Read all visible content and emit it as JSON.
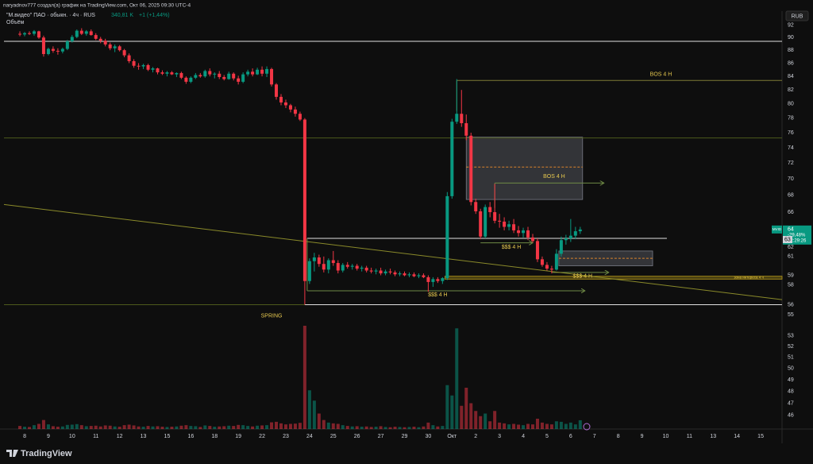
{
  "header": {
    "author_line": "naryadnov777 создал(а) график на TradingView.com, Окт 06, 2025 09:30 UTC-4",
    "symbol": "\"М.видео\" ПАО · обыкн. · 4ч · RUS",
    "volume_readout": "340,81 K",
    "change": "+1 (+1,44%)",
    "indicator": "Объём",
    "currency": "RUB",
    "brand": "TradingView"
  },
  "chart_data": {
    "type": "candlestick",
    "log_scale": true,
    "grid": false,
    "up_color": "#089981",
    "down_color": "#f23645",
    "xlim": [
      -0.87,
      31.9
    ],
    "ylim": [
      44.9,
      93.0
    ],
    "xticks": [
      {
        "value": 0,
        "label": "8"
      },
      {
        "value": 1,
        "label": "9"
      },
      {
        "value": 2,
        "label": "10"
      },
      {
        "value": 3,
        "label": "11"
      },
      {
        "value": 4,
        "label": "12"
      },
      {
        "value": 5,
        "label": "13"
      },
      {
        "value": 6,
        "label": "15"
      },
      {
        "value": 7,
        "label": "16"
      },
      {
        "value": 8,
        "label": "18"
      },
      {
        "value": 9,
        "label": "19"
      },
      {
        "value": 10,
        "label": "22"
      },
      {
        "value": 11,
        "label": "23"
      },
      {
        "value": 12,
        "label": "24"
      },
      {
        "value": 13,
        "label": "25"
      },
      {
        "value": 14,
        "label": "26"
      },
      {
        "value": 15,
        "label": "27"
      },
      {
        "value": 16,
        "label": "29"
      },
      {
        "value": 17,
        "label": "30"
      },
      {
        "value": 18,
        "label": "Окт"
      },
      {
        "value": 19,
        "label": "2"
      },
      {
        "value": 20,
        "label": "3"
      },
      {
        "value": 21,
        "label": "4"
      },
      {
        "value": 22,
        "label": "5"
      },
      {
        "value": 23,
        "label": "6"
      },
      {
        "value": 24,
        "label": "7"
      },
      {
        "value": 25,
        "label": "8"
      },
      {
        "value": 26,
        "label": "9"
      },
      {
        "value": 27,
        "label": "10"
      },
      {
        "value": 28,
        "label": "11"
      },
      {
        "value": 29,
        "label": "13"
      },
      {
        "value": 30,
        "label": "14"
      },
      {
        "value": 31,
        "label": "15"
      }
    ],
    "yticks": [
      92,
      90,
      88,
      86,
      84,
      82,
      80,
      78,
      76,
      74,
      72,
      70,
      68,
      66,
      62,
      61,
      59,
      58,
      56,
      55,
      53,
      52,
      51,
      50,
      49,
      48,
      47,
      46
    ],
    "candles": [
      [
        -0.2,
        90.6,
        91,
        90.2,
        90.5,
        120
      ],
      [
        0,
        90.5,
        90.9,
        90.2,
        90.7,
        90
      ],
      [
        0.2,
        90.7,
        91,
        90.4,
        90.6,
        80
      ],
      [
        0.4,
        90.6,
        91.2,
        90.3,
        91,
        150
      ],
      [
        0.6,
        91,
        91.1,
        89.8,
        90,
        200
      ],
      [
        0.8,
        90,
        90.3,
        87,
        87.4,
        350
      ],
      [
        1,
        87.4,
        88.4,
        87.2,
        88.2,
        180
      ],
      [
        1.2,
        88.2,
        88.6,
        87.6,
        87.9,
        110
      ],
      [
        1.4,
        87.9,
        88.3,
        87.3,
        87.8,
        90
      ],
      [
        1.6,
        87.8,
        88.4,
        87.5,
        88.2,
        100
      ],
      [
        1.8,
        88.2,
        89.6,
        88,
        89.4,
        160
      ],
      [
        2,
        89.4,
        90.4,
        89.2,
        90.1,
        170
      ],
      [
        2.2,
        90.1,
        91.3,
        89.9,
        91.1,
        190
      ],
      [
        2.4,
        91.1,
        91.5,
        90.4,
        90.6,
        150
      ],
      [
        2.6,
        90.6,
        91.2,
        90.3,
        91,
        110
      ],
      [
        2.8,
        91,
        91.3,
        90.3,
        90.4,
        120
      ],
      [
        3,
        90.4,
        90.7,
        89.6,
        89.8,
        130
      ],
      [
        3.2,
        89.8,
        90.1,
        89.1,
        89.5,
        100
      ],
      [
        3.4,
        89.5,
        89.8,
        88.6,
        88.9,
        140
      ],
      [
        3.6,
        88.9,
        89.2,
        88,
        88.3,
        130
      ],
      [
        3.8,
        88.3,
        88.9,
        87.7,
        88.6,
        100
      ],
      [
        4,
        88.6,
        88.8,
        87.8,
        88,
        90
      ],
      [
        4.2,
        88,
        88.2,
        86.9,
        87.2,
        150
      ],
      [
        4.4,
        87.2,
        87.5,
        86,
        86.3,
        170
      ],
      [
        4.6,
        86.3,
        86.6,
        85.3,
        85.6,
        140
      ],
      [
        4.8,
        85.6,
        86,
        85,
        85.5,
        100
      ],
      [
        5,
        85.5,
        85.9,
        85.1,
        85.7,
        90
      ],
      [
        5.2,
        85.7,
        85.9,
        84.8,
        85,
        120
      ],
      [
        5.4,
        85,
        85.4,
        84.6,
        85.2,
        100
      ],
      [
        5.6,
        85.2,
        85.3,
        84.3,
        84.6,
        110
      ],
      [
        5.8,
        84.6,
        84.9,
        84.2,
        84.4,
        90
      ],
      [
        6,
        84.4,
        84.8,
        84,
        84.6,
        80
      ],
      [
        6.2,
        84.6,
        84.8,
        84.2,
        84.3,
        90
      ],
      [
        6.4,
        84.3,
        84.6,
        83.9,
        84.5,
        100
      ],
      [
        6.6,
        84.5,
        84.7,
        83.6,
        83.8,
        130
      ],
      [
        6.8,
        83.8,
        84,
        82.9,
        83.2,
        150
      ],
      [
        7,
        83.2,
        84,
        83,
        83.8,
        120
      ],
      [
        7.2,
        83.8,
        84.5,
        83.6,
        84.2,
        110
      ],
      [
        7.4,
        84.2,
        84.5,
        83.8,
        84,
        80
      ],
      [
        7.6,
        84,
        85,
        83.8,
        84.8,
        140
      ],
      [
        7.8,
        84.8,
        85.2,
        84,
        84.3,
        120
      ],
      [
        8,
        84.3,
        84.6,
        83.7,
        84.4,
        90
      ],
      [
        8.2,
        84.4,
        84.8,
        83.6,
        83.9,
        100
      ],
      [
        8.4,
        83.9,
        84.2,
        83.4,
        83.6,
        110
      ],
      [
        8.6,
        83.6,
        84.7,
        83.5,
        84.4,
        130
      ],
      [
        8.8,
        84.4,
        84.6,
        83.4,
        83.7,
        120
      ],
      [
        9,
        83.7,
        84.1,
        82.8,
        83.2,
        160
      ],
      [
        9.2,
        83.2,
        84.6,
        83,
        84.3,
        150
      ],
      [
        9.4,
        84.3,
        85,
        84,
        84.7,
        120
      ],
      [
        9.6,
        84.7,
        85.2,
        84,
        84.3,
        100
      ],
      [
        9.8,
        84.3,
        85.3,
        84.2,
        85,
        130
      ],
      [
        10,
        85,
        85.5,
        84,
        84.4,
        140
      ],
      [
        10.2,
        84.4,
        85.5,
        83.9,
        85.1,
        150
      ],
      [
        10.4,
        85.1,
        85.3,
        82.5,
        82.8,
        260
      ],
      [
        10.6,
        82.8,
        83,
        80.6,
        81,
        280
      ],
      [
        10.8,
        81,
        81.4,
        79.8,
        80.2,
        220
      ],
      [
        11,
        80.2,
        80.6,
        79.4,
        79.8,
        180
      ],
      [
        11.2,
        79.8,
        80,
        78.8,
        79.2,
        200
      ],
      [
        11.4,
        79.2,
        79.6,
        78.2,
        78.6,
        210
      ],
      [
        11.6,
        78.6,
        78.9,
        77.6,
        77.8,
        240
      ],
      [
        11.8,
        77.8,
        78,
        56,
        58.4,
        4000
      ],
      [
        12,
        58.4,
        60.8,
        58.1,
        60.5,
        1500
      ],
      [
        12.2,
        60.5,
        61.4,
        59.4,
        60.9,
        1100
      ],
      [
        12.4,
        60.9,
        61.2,
        59.9,
        60.2,
        600
      ],
      [
        12.6,
        60.2,
        61,
        59.3,
        59.6,
        350
      ],
      [
        12.8,
        59.6,
        60.8,
        59.2,
        60.6,
        250
      ],
      [
        13,
        60.6,
        61.6,
        60,
        60.3,
        220
      ],
      [
        13.2,
        60.3,
        60.6,
        59.2,
        59.5,
        200
      ],
      [
        13.4,
        59.5,
        60.3,
        59.3,
        60.1,
        150
      ],
      [
        13.6,
        60.1,
        60.4,
        59.7,
        59.9,
        120
      ],
      [
        13.8,
        59.9,
        60.2,
        59.6,
        60,
        100
      ],
      [
        14,
        60,
        60.2,
        59.5,
        59.7,
        110
      ],
      [
        14.2,
        59.7,
        60,
        59.4,
        59.8,
        90
      ],
      [
        14.4,
        59.8,
        60,
        59.3,
        59.5,
        100
      ],
      [
        14.6,
        59.5,
        59.8,
        59.2,
        59.4,
        80
      ],
      [
        14.8,
        59.4,
        59.7,
        59.1,
        59.5,
        90
      ],
      [
        15,
        59.5,
        59.8,
        59,
        59.2,
        110
      ],
      [
        15.2,
        59.2,
        59.6,
        59,
        59.4,
        80
      ],
      [
        15.4,
        59.4,
        59.7,
        59.1,
        59.3,
        70
      ],
      [
        15.6,
        59.3,
        59.5,
        58.9,
        59.1,
        90
      ],
      [
        15.8,
        59.1,
        59.4,
        58.9,
        59.2,
        80
      ],
      [
        16,
        59.2,
        59.4,
        58.9,
        59,
        70
      ],
      [
        16.2,
        59,
        59.3,
        58.8,
        59.1,
        80
      ],
      [
        16.4,
        59.1,
        59.3,
        58.8,
        58.9,
        90
      ],
      [
        16.6,
        58.9,
        59.2,
        58.7,
        59,
        70
      ],
      [
        16.8,
        59,
        59.2,
        58.7,
        58.8,
        100
      ],
      [
        17,
        58.8,
        59,
        57.3,
        58.3,
        250
      ],
      [
        17.2,
        58.3,
        58.8,
        57.8,
        58.6,
        150
      ],
      [
        17.4,
        58.6,
        58.8,
        58.2,
        58.4,
        100
      ],
      [
        17.6,
        58.4,
        58.8,
        58.1,
        58.7,
        120
      ],
      [
        17.8,
        58.7,
        68.4,
        58.5,
        67.9,
        1700
      ],
      [
        18,
        67.9,
        77.9,
        67.6,
        77.5,
        1300
      ],
      [
        18.2,
        77.5,
        83.6,
        77.2,
        78.6,
        3900
      ],
      [
        18.4,
        78.6,
        82,
        76.8,
        77.3,
        900
      ],
      [
        18.6,
        77.3,
        78.5,
        75,
        75.6,
        1600
      ],
      [
        18.8,
        75.6,
        76,
        66.8,
        67.2,
        1000
      ],
      [
        19,
        67.2,
        67.6,
        65.8,
        66.1,
        700
      ],
      [
        19.2,
        66.1,
        66.4,
        62.9,
        63.2,
        500
      ],
      [
        19.4,
        63.2,
        66.9,
        63,
        66.6,
        600
      ],
      [
        19.6,
        66.6,
        67.2,
        65.4,
        66,
        300
      ],
      [
        19.8,
        66,
        69.4,
        64.7,
        65,
        700
      ],
      [
        20,
        65,
        65.8,
        64.2,
        64.9,
        250
      ],
      [
        20.2,
        64.9,
        65.4,
        63.9,
        64.3,
        220
      ],
      [
        20.4,
        64.3,
        65,
        63.9,
        64.6,
        180
      ],
      [
        20.6,
        64.6,
        65.2,
        63.6,
        63.9,
        200
      ],
      [
        20.8,
        63.9,
        64.4,
        63.2,
        63.6,
        170
      ],
      [
        21,
        63.6,
        64.2,
        63.1,
        63.9,
        150
      ],
      [
        21.2,
        63.9,
        64.3,
        62.8,
        63.1,
        200
      ],
      [
        21.4,
        63.1,
        63.5,
        62.5,
        62.7,
        180
      ],
      [
        21.6,
        62.7,
        63,
        60.4,
        60.7,
        400
      ],
      [
        21.8,
        60.7,
        61,
        59.9,
        60.1,
        250
      ],
      [
        22,
        60.1,
        60.4,
        59.5,
        59.7,
        200
      ],
      [
        22.2,
        59.7,
        60,
        59.2,
        59.6,
        180
      ],
      [
        22.4,
        59.6,
        61.8,
        59.5,
        61.3,
        300
      ],
      [
        22.6,
        61.3,
        63.2,
        61,
        62.8,
        280
      ],
      [
        22.8,
        62.8,
        63.4,
        62.3,
        63,
        200
      ],
      [
        23,
        63,
        65.2,
        62.6,
        63.3,
        250
      ],
      [
        23.2,
        63.3,
        64.3,
        62.9,
        63.8,
        180
      ],
      [
        23.4,
        63.8,
        64.3,
        63.5,
        64,
        340.81
      ]
    ],
    "lines": [
      {
        "x": [
          -0.87,
          31.9
        ],
        "y": [
          89.4,
          89.4
        ],
        "color": "#e0e0e0"
      },
      {
        "x": [
          -0.87,
          31.9
        ],
        "y": [
          75.3,
          75.3
        ],
        "color": "#4d5a1c"
      },
      {
        "x": [
          -0.87,
          31.9
        ],
        "y": [
          56.0,
          56.0
        ],
        "color": "#4d5a1c"
      },
      {
        "x": [
          11.8,
          31.9
        ],
        "y": [
          56.0,
          56.0
        ],
        "color": "#e0e0e0"
      },
      {
        "x": [
          11.9,
          27.05
        ],
        "y": [
          63.0,
          63.0
        ],
        "color": "#e0e0e0"
      },
      {
        "x": [
          18.2,
          31.9
        ],
        "y": [
          83.4,
          83.4
        ],
        "color": "#7d7a35"
      },
      {
        "x": [
          18.2,
          18.2
        ],
        "y": [
          83.4,
          79.0
        ],
        "color": "#7d7a35"
      },
      {
        "x": [
          19.8,
          24.4
        ],
        "y": [
          69.5,
          69.5
        ],
        "color": "#6f8a45",
        "arrow": true
      },
      {
        "x": [
          19.8,
          19.8
        ],
        "y": [
          69.5,
          66.5
        ],
        "color": "#6f8a45"
      },
      {
        "x": [
          19.2,
          21.4
        ],
        "y": [
          62.5,
          62.5
        ],
        "color": "#6f8a45",
        "arrow": true
      },
      {
        "x": [
          22.2,
          24.6
        ],
        "y": [
          59.3,
          59.3
        ],
        "color": "#6f8a45",
        "arrow": true
      },
      {
        "x": [
          11.9,
          23.6
        ],
        "y": [
          57.4,
          57.4
        ],
        "color": "#6f8a45",
        "arrow": true
      },
      {
        "x": [
          11.9,
          11.9
        ],
        "y": [
          63.0,
          57.4
        ],
        "color": "#6f8a45"
      },
      {
        "x": [
          -0.87,
          31.9
        ],
        "y": [
          66.9,
          56.5
        ],
        "color": "#8a8a2a"
      },
      {
        "x": [
          18.6,
          23.5
        ],
        "y": [
          71.5,
          71.5
        ],
        "color": "#d9822b",
        "dash": true
      },
      {
        "x": [
          22.5,
          26.45
        ],
        "y": [
          60.8,
          60.8
        ],
        "color": "#d9822b",
        "dash": true
      }
    ],
    "boxes": [
      {
        "x": [
          18.6,
          23.5
        ],
        "y": [
          67.5,
          75.4
        ],
        "color": "#787b86"
      },
      {
        "x": [
          22.5,
          26.45
        ],
        "y": [
          60.0,
          61.6
        ],
        "color": "#787b86"
      },
      {
        "x": [
          17.7,
          31.9
        ],
        "y": [
          58.6,
          58.9
        ],
        "color": "#b89b1a"
      }
    ],
    "labels": [
      {
        "text": "BOS 4 H",
        "x": 26.8,
        "y": 84.3,
        "color": "#e6c84f"
      },
      {
        "text": "BOS 4 H",
        "x": 22.3,
        "y": 70.3,
        "color": "#e6c84f"
      },
      {
        "text": "$$$ 4 H",
        "x": 20.5,
        "y": 62.0,
        "color": "#e6c84f"
      },
      {
        "text": "$$$ 4 H",
        "x": 23.5,
        "y": 58.9,
        "color": "#e6c84f"
      },
      {
        "text": "$$$ 4 H",
        "x": 17.4,
        "y": 57.0,
        "color": "#e6c84f"
      },
      {
        "text": "SPRING",
        "x": 10.4,
        "y": 54.9,
        "color": "#e6c84f"
      },
      {
        "text": "зона интереса 4 ч",
        "x": 30.5,
        "y": 58.75,
        "color": "#f0d040"
      }
    ],
    "symbol_tag": "MVID",
    "last_price": 64,
    "last_change": "-29,48%",
    "countdown": "02:29:26",
    "line_tag": 63
  }
}
